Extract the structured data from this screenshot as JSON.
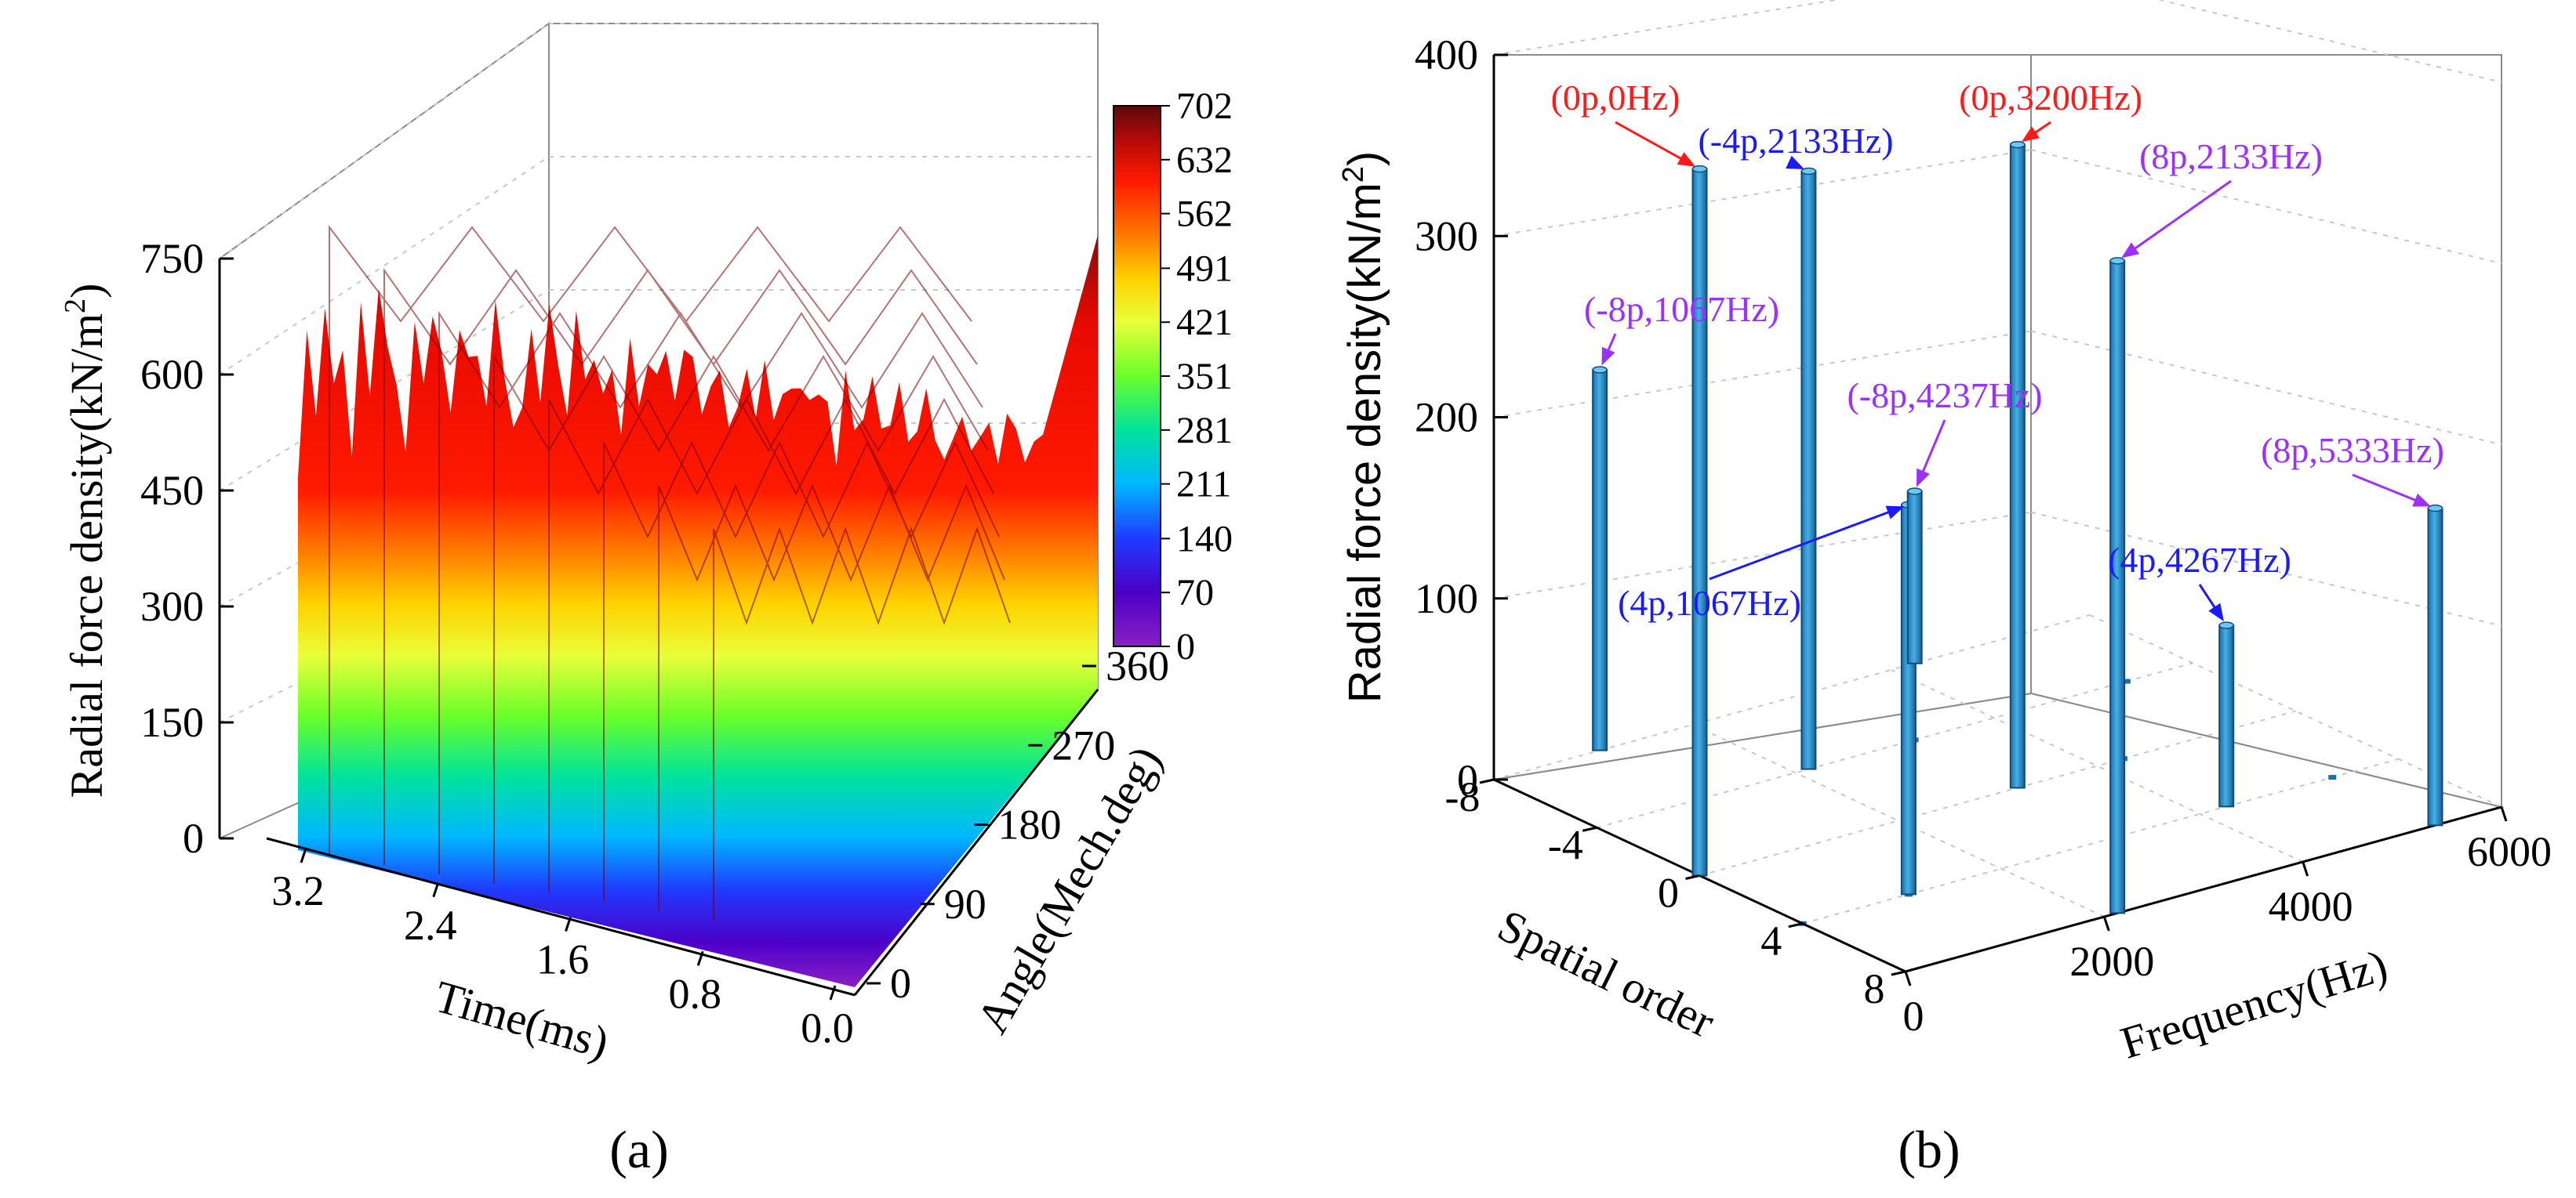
{
  "chart_data": [
    {
      "type": "surface3d",
      "panel_label": "(a)",
      "zlabel": "Radial  force density(kN/m",
      "zlabel_sup": "2",
      "zlabel_close": ")",
      "xlabel": "Time(ms)",
      "ylabel": "Angle(Mech.deg)",
      "z_ticks": [
        "0",
        "150",
        "300",
        "450",
        "600",
        "750"
      ],
      "x_ticks": [
        "3.2",
        "2.4",
        "1.6",
        "0.8",
        "0.0"
      ],
      "y_ticks": [
        "0",
        "90",
        "180",
        "270",
        "360"
      ],
      "zlim": [
        0,
        750
      ],
      "xlim": [
        0,
        3.2
      ],
      "ylim": [
        0,
        360
      ],
      "colorbar": {
        "ticks": [
          "702",
          "632",
          "562",
          "491",
          "421",
          "351",
          "281",
          "211",
          "140",
          "70",
          "0"
        ],
        "range": [
          0,
          702
        ],
        "colors": [
          "#5a0a0a",
          "#b00a0a",
          "#ff1a00",
          "#ff7a00",
          "#ffd200",
          "#e8ff3a",
          "#6aff2a",
          "#00e39c",
          "#00b7ff",
          "#1f3bff",
          "#4b00c8",
          "#8a1fc4"
        ]
      },
      "surface_ridges": [
        {
          "angle": 0,
          "peaks": [
            460,
            600,
            520,
            680,
            540,
            610,
            500,
            650,
            560,
            720,
            600,
            580
          ]
        },
        {
          "angle": 60,
          "peaks": [
            520,
            640,
            590,
            700,
            610,
            560,
            690,
            610,
            640,
            600,
            690,
            620
          ]
        },
        {
          "angle": 120,
          "peaks": [
            580,
            560,
            690,
            620,
            700,
            650,
            610,
            700,
            640,
            690,
            600,
            660
          ]
        },
        {
          "angle": 180,
          "peaks": [
            600,
            680,
            620,
            700,
            640,
            700,
            660,
            680,
            700,
            650,
            640,
            690
          ]
        },
        {
          "angle": 240,
          "peaks": [
            640,
            620,
            700,
            660,
            690,
            640,
            700,
            660,
            690,
            700,
            660,
            680
          ]
        },
        {
          "angle": 300,
          "peaks": [
            620,
            700,
            650,
            690,
            700,
            660,
            690,
            700,
            650,
            690,
            700,
            660
          ]
        },
        {
          "angle": 360,
          "peaks": [
            660,
            640,
            700,
            680,
            650,
            700,
            670,
            690,
            700,
            680,
            660,
            700
          ]
        }
      ]
    },
    {
      "type": "bar3d",
      "panel_label": "(b)",
      "zlabel": "Radial  force density(kN/m",
      "zlabel_sup": "2",
      "zlabel_close": ")",
      "xlabel": "Frequency(Hz)",
      "ylabel": "Spatial order",
      "z_ticks": [
        "0",
        "100",
        "200",
        "300",
        "400"
      ],
      "x_ticks": [
        "0",
        "2000",
        "4000",
        "6000"
      ],
      "y_ticks": [
        "-8",
        "-4",
        "0",
        "4",
        "8"
      ],
      "zlim": [
        0,
        400
      ],
      "xlim": [
        0,
        6000
      ],
      "ylim": [
        -8,
        8
      ],
      "bars": [
        {
          "order": -8,
          "freq": 1067,
          "value": 210,
          "label": "(-8p,1067Hz)",
          "color": "#9b30ff"
        },
        {
          "order": 0,
          "freq": 0,
          "value": 390,
          "label": "(0p,0Hz)",
          "color": "#ff1a1a"
        },
        {
          "order": -4,
          "freq": 2133,
          "value": 330,
          "label": "(-4p,2133Hz)",
          "color": "#1a1aff"
        },
        {
          "order": 4,
          "freq": 1067,
          "value": 215,
          "label": "(4p,1067Hz)",
          "color": "#1a1aff"
        },
        {
          "order": -8,
          "freq": 4237,
          "value": 95,
          "label": "(-8p,4237Hz)",
          "color": "#9b30ff"
        },
        {
          "order": 0,
          "freq": 3200,
          "value": 355,
          "label": "(0p,3200Hz)",
          "color": "#ff1a1a"
        },
        {
          "order": 8,
          "freq": 2133,
          "value": 360,
          "label": "(8p,2133Hz)",
          "color": "#9b30ff"
        },
        {
          "order": 4,
          "freq": 4267,
          "value": 100,
          "label": "(4p,4267Hz)",
          "color": "#1a1aff"
        },
        {
          "order": 8,
          "freq": 5333,
          "value": 175,
          "label": "(8p,5333Hz)",
          "color": "#9b30ff"
        }
      ]
    }
  ]
}
